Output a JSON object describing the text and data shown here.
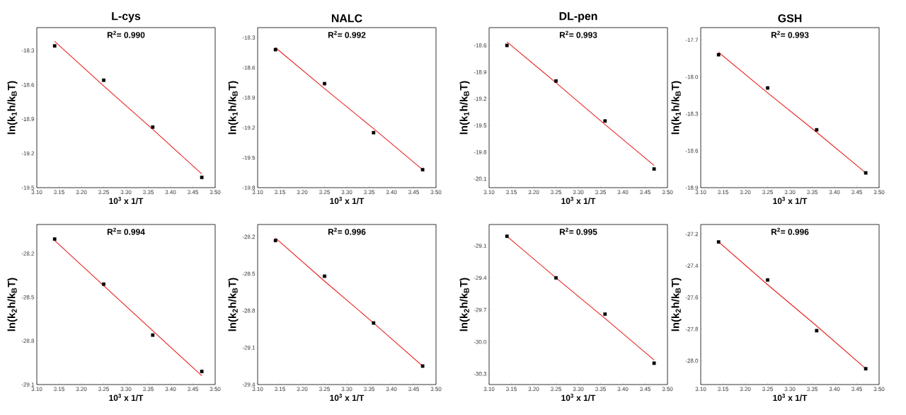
{
  "chart_data": [
    {
      "type": "scatter",
      "title": "L-cys",
      "xlabel": "10$^{3}$ x 1/T",
      "ylabel": "ln(k$_{1}$h/k$_{B}$T)",
      "annotations": [
        "R$^{2}$= 0.990"
      ],
      "x": [
        3.14,
        3.25,
        3.36,
        3.47
      ],
      "xlim": [
        3.1,
        3.5
      ],
      "ylim": [
        -19.5,
        -18.1
      ],
      "xticks": [
        {
          "value": 3.1,
          "label": "3.10"
        },
        3.15,
        {
          "value": 3.2,
          "label": "3.20"
        },
        3.25,
        {
          "value": 3.3,
          "label": "3.30"
        },
        3.35,
        {
          "value": 3.4,
          "label": "3.40"
        },
        3.45,
        {
          "value": 3.5,
          "label": "3.50"
        }
      ],
      "yticks": [
        -19.5,
        -19.2,
        -18.9,
        -18.6,
        -18.3
      ],
      "series": [
        {
          "type": "scatter",
          "marker": "square",
          "color": "#000000",
          "values": [
            -18.26,
            -18.56,
            -18.97,
            -19.41
          ]
        },
        {
          "type": "line",
          "marker": "none",
          "color": "#e8201c",
          "values": [
            -18.22,
            -18.61,
            -18.99,
            -19.38
          ]
        }
      ]
    },
    {
      "type": "scatter",
      "title": "NALC",
      "xlabel": "10$^{3}$ x 1/T",
      "ylabel": "ln(k$_{1}$h/k$_{B}$T)",
      "annotations": [
        "R$^{2}$= 0.992"
      ],
      "x": [
        3.14,
        3.25,
        3.36,
        3.47
      ],
      "xlim": [
        3.1,
        3.5
      ],
      "ylim": [
        -19.8,
        -18.2
      ],
      "xticks": [
        {
          "value": 3.1,
          "label": "3.10"
        },
        3.15,
        {
          "value": 3.2,
          "label": "3.20"
        },
        3.25,
        {
          "value": 3.3,
          "label": "3.30"
        },
        3.35,
        {
          "value": 3.4,
          "label": "3.40"
        },
        3.45,
        {
          "value": 3.5,
          "label": "3.50"
        }
      ],
      "yticks": [
        -19.8,
        -19.5,
        -19.2,
        -18.9,
        -18.6,
        -18.3
      ],
      "series": [
        {
          "type": "scatter",
          "marker": "square",
          "color": "#000000",
          "values": [
            -18.42,
            -18.76,
            -19.25,
            -19.62
          ]
        },
        {
          "type": "line",
          "marker": "none",
          "color": "#e8201c",
          "values": [
            -18.4,
            -18.81,
            -19.21,
            -19.62
          ]
        }
      ]
    },
    {
      "type": "scatter",
      "title": "DL-pen",
      "xlabel": "10$^{3}$ x 1/T",
      "ylabel": "ln(k$_{1}$h/k$_{B}$T)",
      "annotations": [
        "R$^{2}$= 0.993"
      ],
      "x": [
        3.14,
        3.25,
        3.36,
        3.47
      ],
      "xlim": [
        3.1,
        3.5
      ],
      "ylim": [
        -20.2,
        -18.4
      ],
      "xticks": [
        {
          "value": 3.1,
          "label": "3.10"
        },
        3.15,
        {
          "value": 3.2,
          "label": "3.20"
        },
        3.25,
        {
          "value": 3.3,
          "label": "3.30"
        },
        3.35,
        {
          "value": 3.4,
          "label": "3.40"
        },
        3.45,
        {
          "value": 3.5,
          "label": "3.50"
        }
      ],
      "yticks": [
        -20.1,
        -19.8,
        -19.5,
        -19.2,
        -18.9,
        -18.6
      ],
      "series": [
        {
          "type": "scatter",
          "marker": "square",
          "color": "#000000",
          "values": [
            -18.6,
            -19.0,
            -19.45,
            -19.99
          ]
        },
        {
          "type": "line",
          "marker": "none",
          "color": "#e8201c",
          "values": [
            -18.56,
            -19.02,
            -19.49,
            -19.95
          ]
        }
      ]
    },
    {
      "type": "scatter",
      "title": "GSH",
      "xlabel": "10$^{3}$ x 1/T",
      "ylabel": "ln(k$_{1}$h/k$_{B}$T)",
      "annotations": [
        "R$^{2}$= 0.993"
      ],
      "x": [
        3.14,
        3.25,
        3.36,
        3.47
      ],
      "xlim": [
        3.1,
        3.5
      ],
      "ylim": [
        -18.9,
        -17.6
      ],
      "xticks": [
        {
          "value": 3.1,
          "label": "3.10"
        },
        3.15,
        {
          "value": 3.2,
          "label": "3.20"
        },
        3.25,
        {
          "value": 3.3,
          "label": "3.30"
        },
        3.35,
        {
          "value": 3.4,
          "label": "3.40"
        },
        3.45,
        {
          "value": 3.5,
          "label": "3.50"
        }
      ],
      "yticks": [
        -18.9,
        -18.6,
        -18.3,
        {
          "value": -18.0,
          "label": "-18.0"
        },
        -17.7
      ],
      "series": [
        {
          "type": "scatter",
          "marker": "square",
          "color": "#000000",
          "values": [
            -17.82,
            -18.09,
            -18.43,
            -18.78
          ]
        },
        {
          "type": "line",
          "marker": "none",
          "color": "#e8201c",
          "values": [
            -17.8,
            -18.13,
            -18.45,
            -18.78
          ]
        }
      ]
    },
    {
      "type": "scatter",
      "xlabel": "10$^{3}$ x 1/T",
      "ylabel": "ln(k$_{2}$h/k$_{B}$T)",
      "annotations": [
        "R$^{2}$= 0.994"
      ],
      "x": [
        3.14,
        3.25,
        3.36,
        3.47
      ],
      "xlim": [
        3.1,
        3.5
      ],
      "ylim": [
        -29.1,
        -28.0
      ],
      "xticks": [
        {
          "value": 3.1,
          "label": "3.10"
        },
        3.15,
        {
          "value": 3.2,
          "label": "3.20"
        },
        3.25,
        {
          "value": 3.3,
          "label": "3.30"
        },
        3.35,
        {
          "value": 3.4,
          "label": "3.40"
        },
        3.45,
        {
          "value": 3.5,
          "label": "3.50"
        }
      ],
      "yticks": [
        -29.1,
        -28.8,
        -28.5,
        -28.2
      ],
      "series": [
        {
          "type": "scatter",
          "marker": "square",
          "color": "#000000",
          "values": [
            -28.1,
            -28.41,
            -28.76,
            -29.01
          ]
        },
        {
          "type": "line",
          "marker": "none",
          "color": "#e8201c",
          "values": [
            -28.11,
            -28.42,
            -28.73,
            -29.04
          ]
        }
      ]
    },
    {
      "type": "scatter",
      "xlabel": "10$^{3}$ x 1/T",
      "ylabel": "ln(k$_{2}$h/k$_{B}$T)",
      "annotations": [
        "R$^{2}$= 0.996"
      ],
      "x": [
        3.14,
        3.25,
        3.36,
        3.47
      ],
      "xlim": [
        3.1,
        3.5
      ],
      "ylim": [
        -29.4,
        -28.1
      ],
      "xticks": [
        {
          "value": 3.1,
          "label": "3.10"
        },
        3.15,
        {
          "value": 3.2,
          "label": "3.20"
        },
        3.25,
        {
          "value": 3.3,
          "label": "3.30"
        },
        3.35,
        {
          "value": 3.4,
          "label": "3.40"
        },
        3.45,
        {
          "value": 3.5,
          "label": "3.50"
        }
      ],
      "yticks": [
        -29.4,
        -29.1,
        -28.8,
        -28.5,
        -28.2
      ],
      "series": [
        {
          "type": "scatter",
          "marker": "square",
          "color": "#000000",
          "values": [
            -28.23,
            -28.52,
            -28.9,
            -29.25
          ]
        },
        {
          "type": "line",
          "marker": "none",
          "color": "#e8201c",
          "values": [
            -28.21,
            -28.56,
            -28.9,
            -29.25
          ]
        }
      ]
    },
    {
      "type": "scatter",
      "xlabel": "10$^{3}$ x 1/T",
      "ylabel": "ln(k$_{2}$h/k$_{B}$T)",
      "annotations": [
        "R$^{2}$= 0.995"
      ],
      "x": [
        3.14,
        3.25,
        3.36,
        3.47
      ],
      "xlim": [
        3.1,
        3.5
      ],
      "ylim": [
        -30.4,
        -28.9
      ],
      "xticks": [
        {
          "value": 3.1,
          "label": "3.10"
        },
        3.15,
        {
          "value": 3.2,
          "label": "3.20"
        },
        3.25,
        {
          "value": 3.3,
          "label": "3.30"
        },
        3.35,
        {
          "value": 3.4,
          "label": "3.40"
        },
        3.45,
        {
          "value": 3.5,
          "label": "3.50"
        }
      ],
      "yticks": [
        -30.3,
        {
          "value": -30.0,
          "label": "-30.0"
        },
        -29.7,
        -29.4,
        -29.1
      ],
      "series": [
        {
          "type": "scatter",
          "marker": "square",
          "color": "#000000",
          "values": [
            -29.01,
            -29.4,
            -29.74,
            -30.2
          ]
        },
        {
          "type": "line",
          "marker": "none",
          "color": "#e8201c",
          "values": [
            -29.01,
            -29.4,
            -29.78,
            -30.17
          ]
        }
      ]
    },
    {
      "type": "scatter",
      "xlabel": "10$^{3}$ x 1/T",
      "ylabel": "ln(k$_{2}$h/k$_{B}$T)",
      "annotations": [
        "R$^{2}$= 0.996"
      ],
      "x": [
        3.14,
        3.25,
        3.36,
        3.47
      ],
      "xlim": [
        3.1,
        3.5
      ],
      "ylim": [
        -28.15,
        -27.14
      ],
      "xticks": [
        {
          "value": 3.1,
          "label": "3.10"
        },
        3.15,
        {
          "value": 3.2,
          "label": "3.20"
        },
        3.25,
        {
          "value": 3.3,
          "label": "3.30"
        },
        3.35,
        {
          "value": 3.4,
          "label": "3.40"
        },
        3.45,
        {
          "value": 3.5,
          "label": "3.50"
        }
      ],
      "yticks": [
        {
          "value": -28.0,
          "label": "-28.0"
        },
        -27.8,
        -27.6,
        -27.4,
        -27.2
      ],
      "series": [
        {
          "type": "scatter",
          "marker": "square",
          "color": "#000000",
          "values": [
            -27.25,
            -27.49,
            -27.81,
            -28.05
          ]
        },
        {
          "type": "line",
          "marker": "none",
          "color": "#e8201c",
          "values": [
            -27.25,
            -27.52,
            -27.78,
            -28.05
          ]
        }
      ]
    }
  ]
}
